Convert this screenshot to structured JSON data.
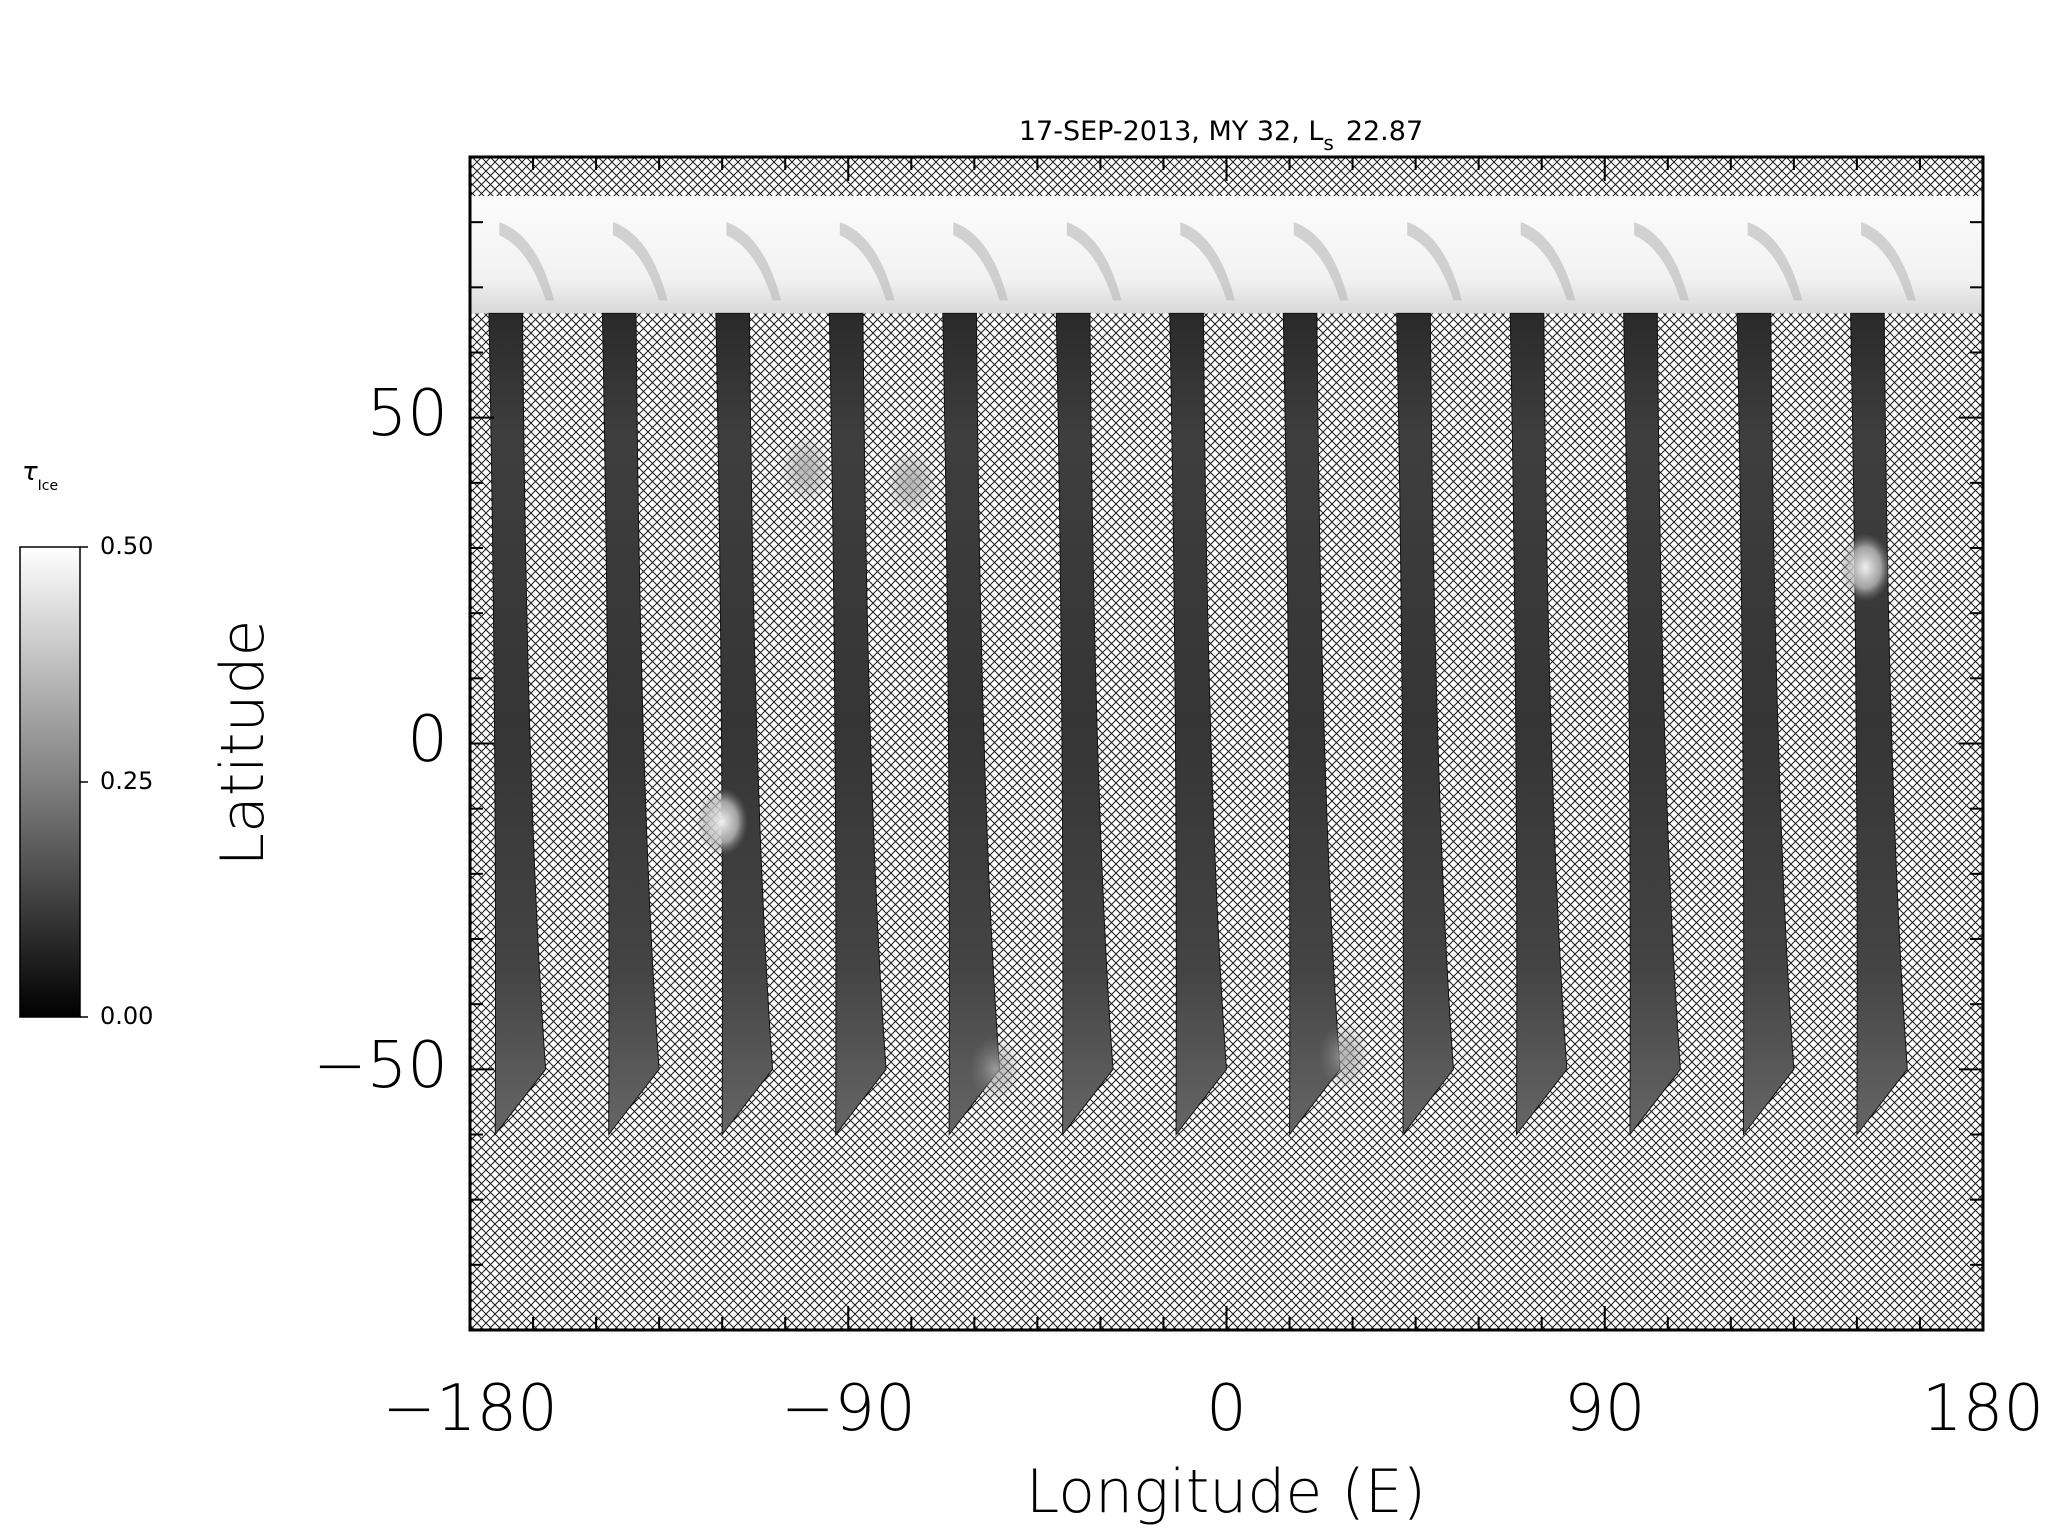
{
  "chart_data": {
    "type": "heatmap",
    "title": "17-SEP-2013, MY 32,  L",
    "title_subscript": "s",
    "title_value": "22.87",
    "xlabel": "Longitude (E)",
    "ylabel": "Latitude",
    "xlim": [
      -180,
      180
    ],
    "ylim": [
      -90,
      90
    ],
    "x_ticks": [
      -180,
      -90,
      0,
      90,
      180
    ],
    "x_tick_labels": [
      "−180",
      "−90",
      "0",
      "90",
      "180"
    ],
    "y_ticks": [
      -50,
      0,
      50
    ],
    "y_tick_labels": [
      "−50",
      "0",
      "50"
    ],
    "x_minor_step": 15,
    "y_minor_step": 10,
    "colormap": "grayscale",
    "colorbar": {
      "label_symbol": "τ",
      "label_subscript": "Ice",
      "range": [
        0.0,
        0.5
      ],
      "ticks": [
        0.0,
        0.25,
        0.5
      ],
      "tick_labels": [
        "0.00",
        "0.25",
        "0.50"
      ]
    },
    "no_data_pattern": "cross-hatch",
    "north_bright_band_lat": [
      66,
      84
    ],
    "swath_count": 13,
    "swaths": [
      {
        "lon_center": -170
      },
      {
        "lon_center": -143
      },
      {
        "lon_center": -116
      },
      {
        "lon_center": -89
      },
      {
        "lon_center": -62
      },
      {
        "lon_center": -35
      },
      {
        "lon_center": -8
      },
      {
        "lon_center": 19
      },
      {
        "lon_center": 46
      },
      {
        "lon_center": 73
      },
      {
        "lon_center": 100
      },
      {
        "lon_center": 127
      },
      {
        "lon_center": 154
      }
    ],
    "bright_features": [
      {
        "lon": -120,
        "lat": -12,
        "tau": 0.45
      },
      {
        "lon": 152,
        "lat": 27,
        "tau": 0.42
      },
      {
        "lon": -100,
        "lat": 42,
        "tau": 0.35
      },
      {
        "lon": -75,
        "lat": 40,
        "tau": 0.3
      },
      {
        "lon": -55,
        "lat": -50,
        "tau": 0.3
      },
      {
        "lon": 28,
        "lat": -48,
        "tau": 0.3
      }
    ]
  }
}
